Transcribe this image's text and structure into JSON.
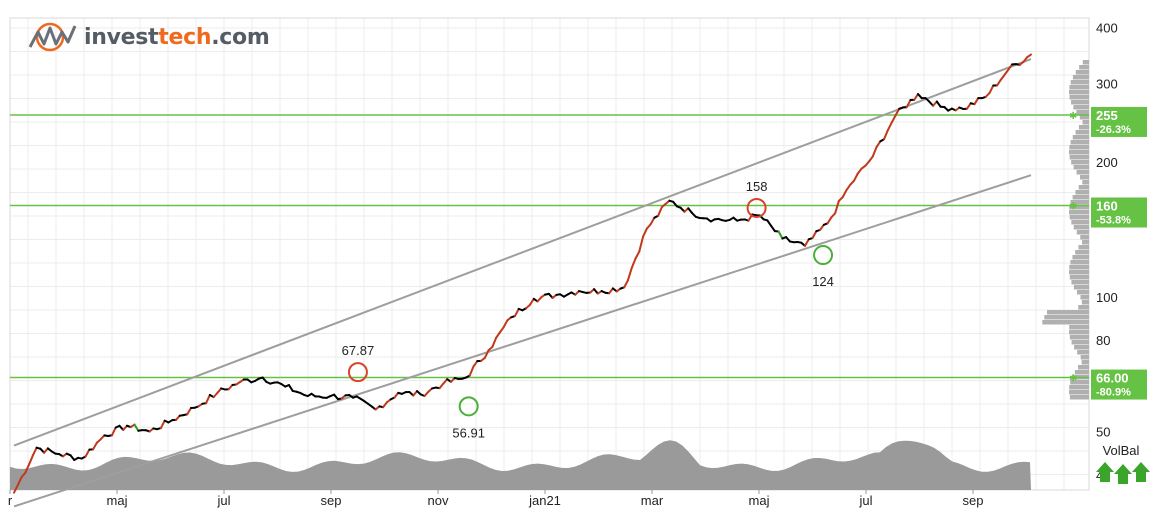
{
  "brand": {
    "name_part1": "invest",
    "name_part2": "tech",
    "name_part3": ".com"
  },
  "chart_data": {
    "type": "line",
    "y_scale": "log",
    "ylim": [
      37,
      420
    ],
    "y_ticks": [
      40,
      50,
      80,
      100,
      200,
      300,
      400
    ],
    "x_ticks": [
      "r",
      "maj",
      "jul",
      "sep",
      "nov",
      "jan21",
      "mar",
      "maj",
      "jul",
      "sep"
    ],
    "grid": true,
    "series": [
      {
        "values": [
          36.5,
          46,
          44.5,
          43.5,
          49,
          51.5,
          50,
          53,
          56.5,
          61,
          64.5,
          66,
          63,
          60,
          60,
          59.5,
          56,
          61,
          60.5,
          64,
          66,
          76,
          90,
          99,
          101,
          103,
          103,
          105,
          142,
          164,
          154,
          149,
          148,
          152,
          135,
          130,
          146,
          178,
          206,
          254,
          284,
          266,
          263,
          280,
          322,
          348
        ]
      }
    ],
    "channel": {
      "upper": {
        "start": 46.5,
        "end": 340
      },
      "lower": {
        "start": 34,
        "end": 187
      }
    },
    "annotations": [
      {
        "label": "67.87",
        "value": 67.87,
        "kind": "high"
      },
      {
        "label": "56.91",
        "value": 56.91,
        "kind": "low"
      },
      {
        "label": "158",
        "value": 158,
        "kind": "high"
      },
      {
        "label": "124",
        "value": 124,
        "kind": "low"
      }
    ],
    "support_resistance": [
      {
        "level": 255,
        "label": "255",
        "pct": "-26.3%"
      },
      {
        "level": 160,
        "label": "160",
        "pct": "-53.8%"
      },
      {
        "level": 66,
        "label": "66.00",
        "pct": "-80.9%"
      }
    ],
    "volume_balance_label": "VolBal",
    "colors": {
      "price": "#000000",
      "price_up": "#c0391b",
      "price_down": "#2e9c1c",
      "channel": "#9e9e9e",
      "support": "#66c244",
      "resistance_circle": "#d9432a",
      "support_circle": "#4bb03a",
      "volume": "#9a9a9a",
      "arrows": "#3aa52a"
    }
  }
}
